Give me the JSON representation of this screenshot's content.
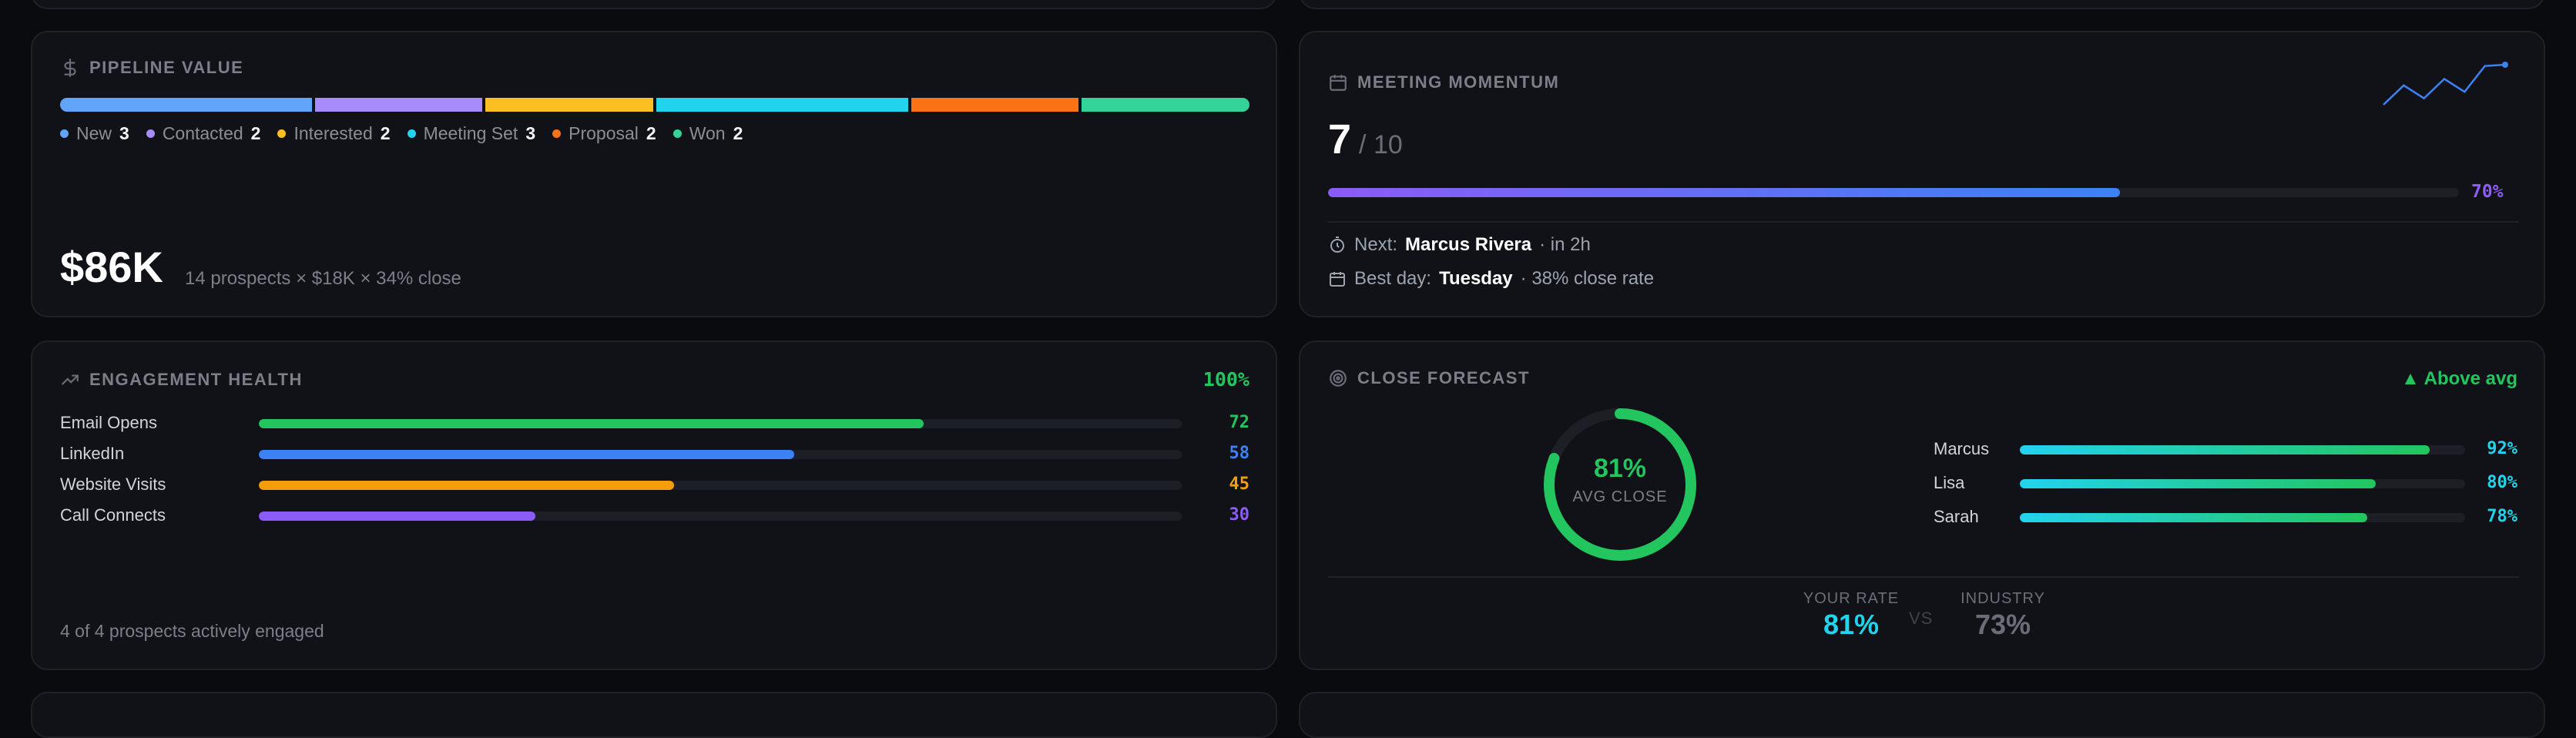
{
  "pipeline": {
    "title": "PIPELINE VALUE",
    "stages": [
      {
        "name": "New",
        "count": "3",
        "color": "#60a5fa"
      },
      {
        "name": "Contacted",
        "count": "2",
        "color": "#a78bfa"
      },
      {
        "name": "Interested",
        "count": "2",
        "color": "#fbbf24"
      },
      {
        "name": "Meeting Set",
        "count": "3",
        "color": "#22d3ee"
      },
      {
        "name": "Proposal",
        "count": "2",
        "color": "#f97316"
      },
      {
        "name": "Won",
        "count": "2",
        "color": "#34d399"
      }
    ],
    "total": "$86K",
    "formula": "14 prospects × $18K × 34% close"
  },
  "meeting": {
    "title": "MEETING MOMENTUM",
    "count": "7",
    "target": "/ 10",
    "progress_pct": 70,
    "progress_label": "70%",
    "next_prefix": "Next:",
    "next_name": "Marcus Rivera",
    "next_suffix": "· in 2h",
    "best_prefix": "Best day:",
    "best_day": "Tuesday",
    "best_suffix": "· 38% close rate",
    "sparkline": [
      2,
      5,
      3,
      6,
      4,
      8,
      8.2
    ]
  },
  "engagement": {
    "title": "ENGAGEMENT HEALTH",
    "score": "100%",
    "rows": [
      {
        "label": "Email Opens",
        "value": 72,
        "display": "72",
        "color": "#22c55e"
      },
      {
        "label": "LinkedIn",
        "value": 58,
        "display": "58",
        "color": "#3b82f6"
      },
      {
        "label": "Website Visits",
        "value": 45,
        "display": "45",
        "color": "#f59e0b"
      },
      {
        "label": "Call Connects",
        "value": 30,
        "display": "30",
        "color": "#8b5cf6"
      }
    ],
    "footer": "4 of 4 prospects actively engaged"
  },
  "forecast": {
    "title": "CLOSE FORECAST",
    "badge": "▲ Above avg",
    "gauge_pct": 81,
    "gauge_value": "81%",
    "gauge_label": "AVG CLOSE",
    "reps": [
      {
        "name": "Marcus",
        "value": 92,
        "display": "92%"
      },
      {
        "name": "Lisa",
        "value": 80,
        "display": "80%"
      },
      {
        "name": "Sarah",
        "value": 78,
        "display": "78%"
      }
    ],
    "your_rate_label": "YOUR RATE",
    "your_rate": "81%",
    "vs": "VS",
    "industry_label": "INDUSTRY",
    "industry": "73%"
  },
  "colors": {
    "accent_green": "#22c55e",
    "accent_cyan": "#22d3ee",
    "accent_purple": "#8b5cf6"
  }
}
